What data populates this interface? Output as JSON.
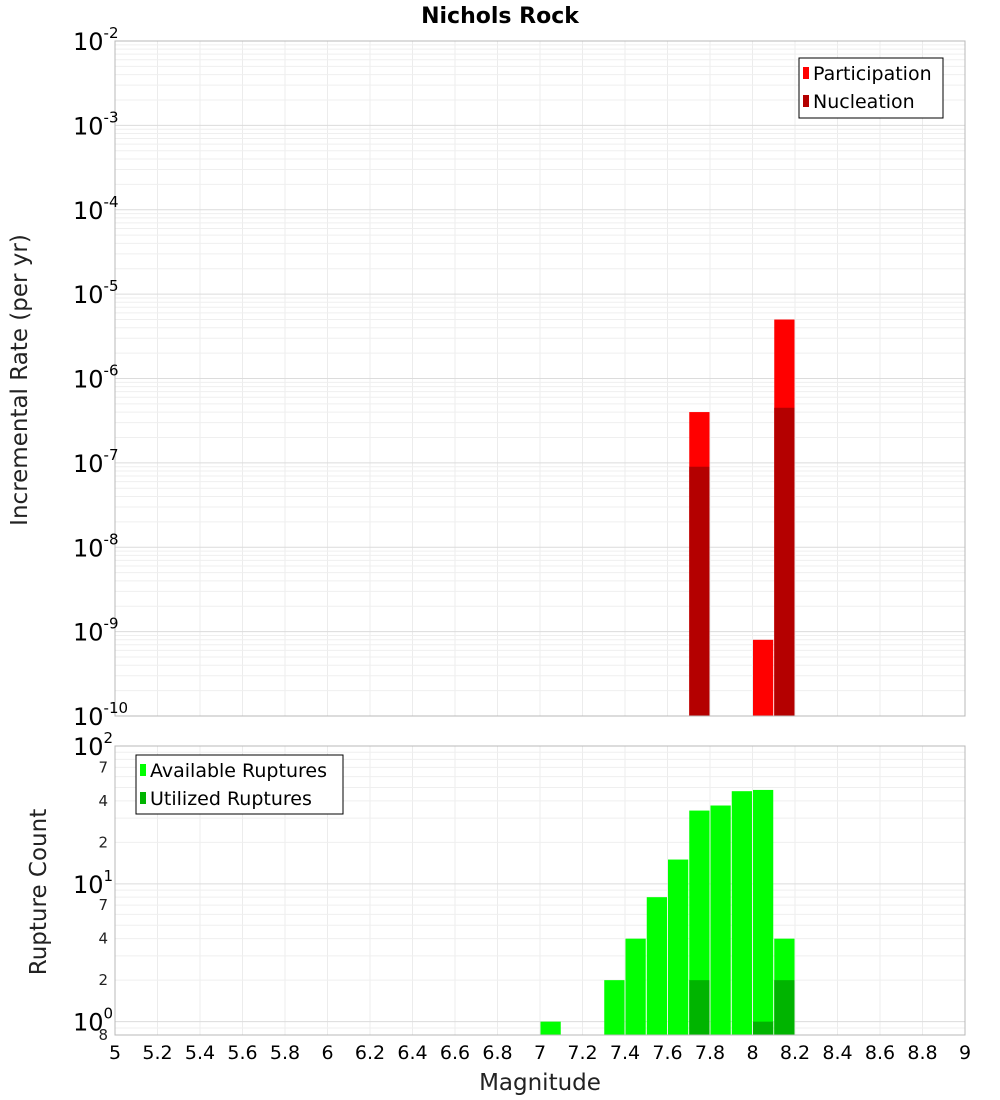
{
  "chart_data": [
    {
      "type": "bar",
      "title": "Nichols Rock",
      "xlabel": "",
      "ylabel": "Incremental Rate (per yr)",
      "yscale": "log",
      "ylim": [
        1e-10,
        0.01
      ],
      "xlim": [
        5,
        9
      ],
      "bar_width": 0.1,
      "grid": true,
      "legend_position": "top-right",
      "y_ticks": [
        {
          "base": "10",
          "exp": "-2",
          "value": 0.01
        },
        {
          "base": "10",
          "exp": "-3",
          "value": 0.001
        },
        {
          "base": "10",
          "exp": "-4",
          "value": 0.0001
        },
        {
          "base": "10",
          "exp": "-5",
          "value": 1e-05
        },
        {
          "base": "10",
          "exp": "-6",
          "value": 1e-06
        },
        {
          "base": "10",
          "exp": "-7",
          "value": 1e-07
        },
        {
          "base": "10",
          "exp": "-8",
          "value": 1e-08
        },
        {
          "base": "10",
          "exp": "-9",
          "value": 1e-09
        },
        {
          "base": "10",
          "exp": "-10",
          "value": 1e-10
        }
      ],
      "series": [
        {
          "name": "Participation",
          "color": "#ff0000",
          "x": [
            7.75,
            8.05,
            8.15
          ],
          "values": [
            4e-07,
            8e-10,
            5e-06
          ]
        },
        {
          "name": "Nucleation",
          "color": "#b40000",
          "x": [
            7.75,
            8.15
          ],
          "values": [
            9e-08,
            4.5e-07
          ]
        }
      ]
    },
    {
      "type": "bar",
      "title": "",
      "xlabel": "Magnitude",
      "ylabel": "Rupture Count",
      "yscale": "log",
      "ylim": [
        0.8,
        100
      ],
      "xlim": [
        5,
        9
      ],
      "bar_width": 0.1,
      "grid": true,
      "legend_position": "top-left",
      "x_ticks": [
        "5",
        "5.2",
        "5.4",
        "5.6",
        "5.8",
        "6",
        "6.2",
        "6.4",
        "6.6",
        "6.8",
        "7",
        "7.2",
        "7.4",
        "7.6",
        "7.8",
        "8",
        "8.2",
        "8.4",
        "8.6",
        "8.8",
        "9"
      ],
      "y_major_ticks": [
        {
          "base": "10",
          "exp": "2",
          "value": 100
        },
        {
          "base": "10",
          "exp": "1",
          "value": 10
        },
        {
          "base": "10",
          "exp": "0",
          "value": 1
        }
      ],
      "y_minor_ticks": [
        {
          "label": "7",
          "value": 70
        },
        {
          "label": "4",
          "value": 40
        },
        {
          "label": "2",
          "value": 20
        },
        {
          "label": "7",
          "value": 7
        },
        {
          "label": "4",
          "value": 4
        },
        {
          "label": "2",
          "value": 2
        },
        {
          "label": "8",
          "value": 0.8
        }
      ],
      "series": [
        {
          "name": "Available Ruptures",
          "color": "#00ff00",
          "x": [
            7.05,
            7.35,
            7.45,
            7.55,
            7.65,
            7.75,
            7.85,
            7.95,
            8.05,
            8.15
          ],
          "values": [
            1,
            2,
            4,
            8,
            15,
            34,
            37,
            47,
            48,
            4
          ]
        },
        {
          "name": "Utilized Ruptures",
          "color": "#00b400",
          "x": [
            7.75,
            8.05,
            8.15
          ],
          "values": [
            2,
            1,
            2
          ]
        }
      ]
    }
  ]
}
